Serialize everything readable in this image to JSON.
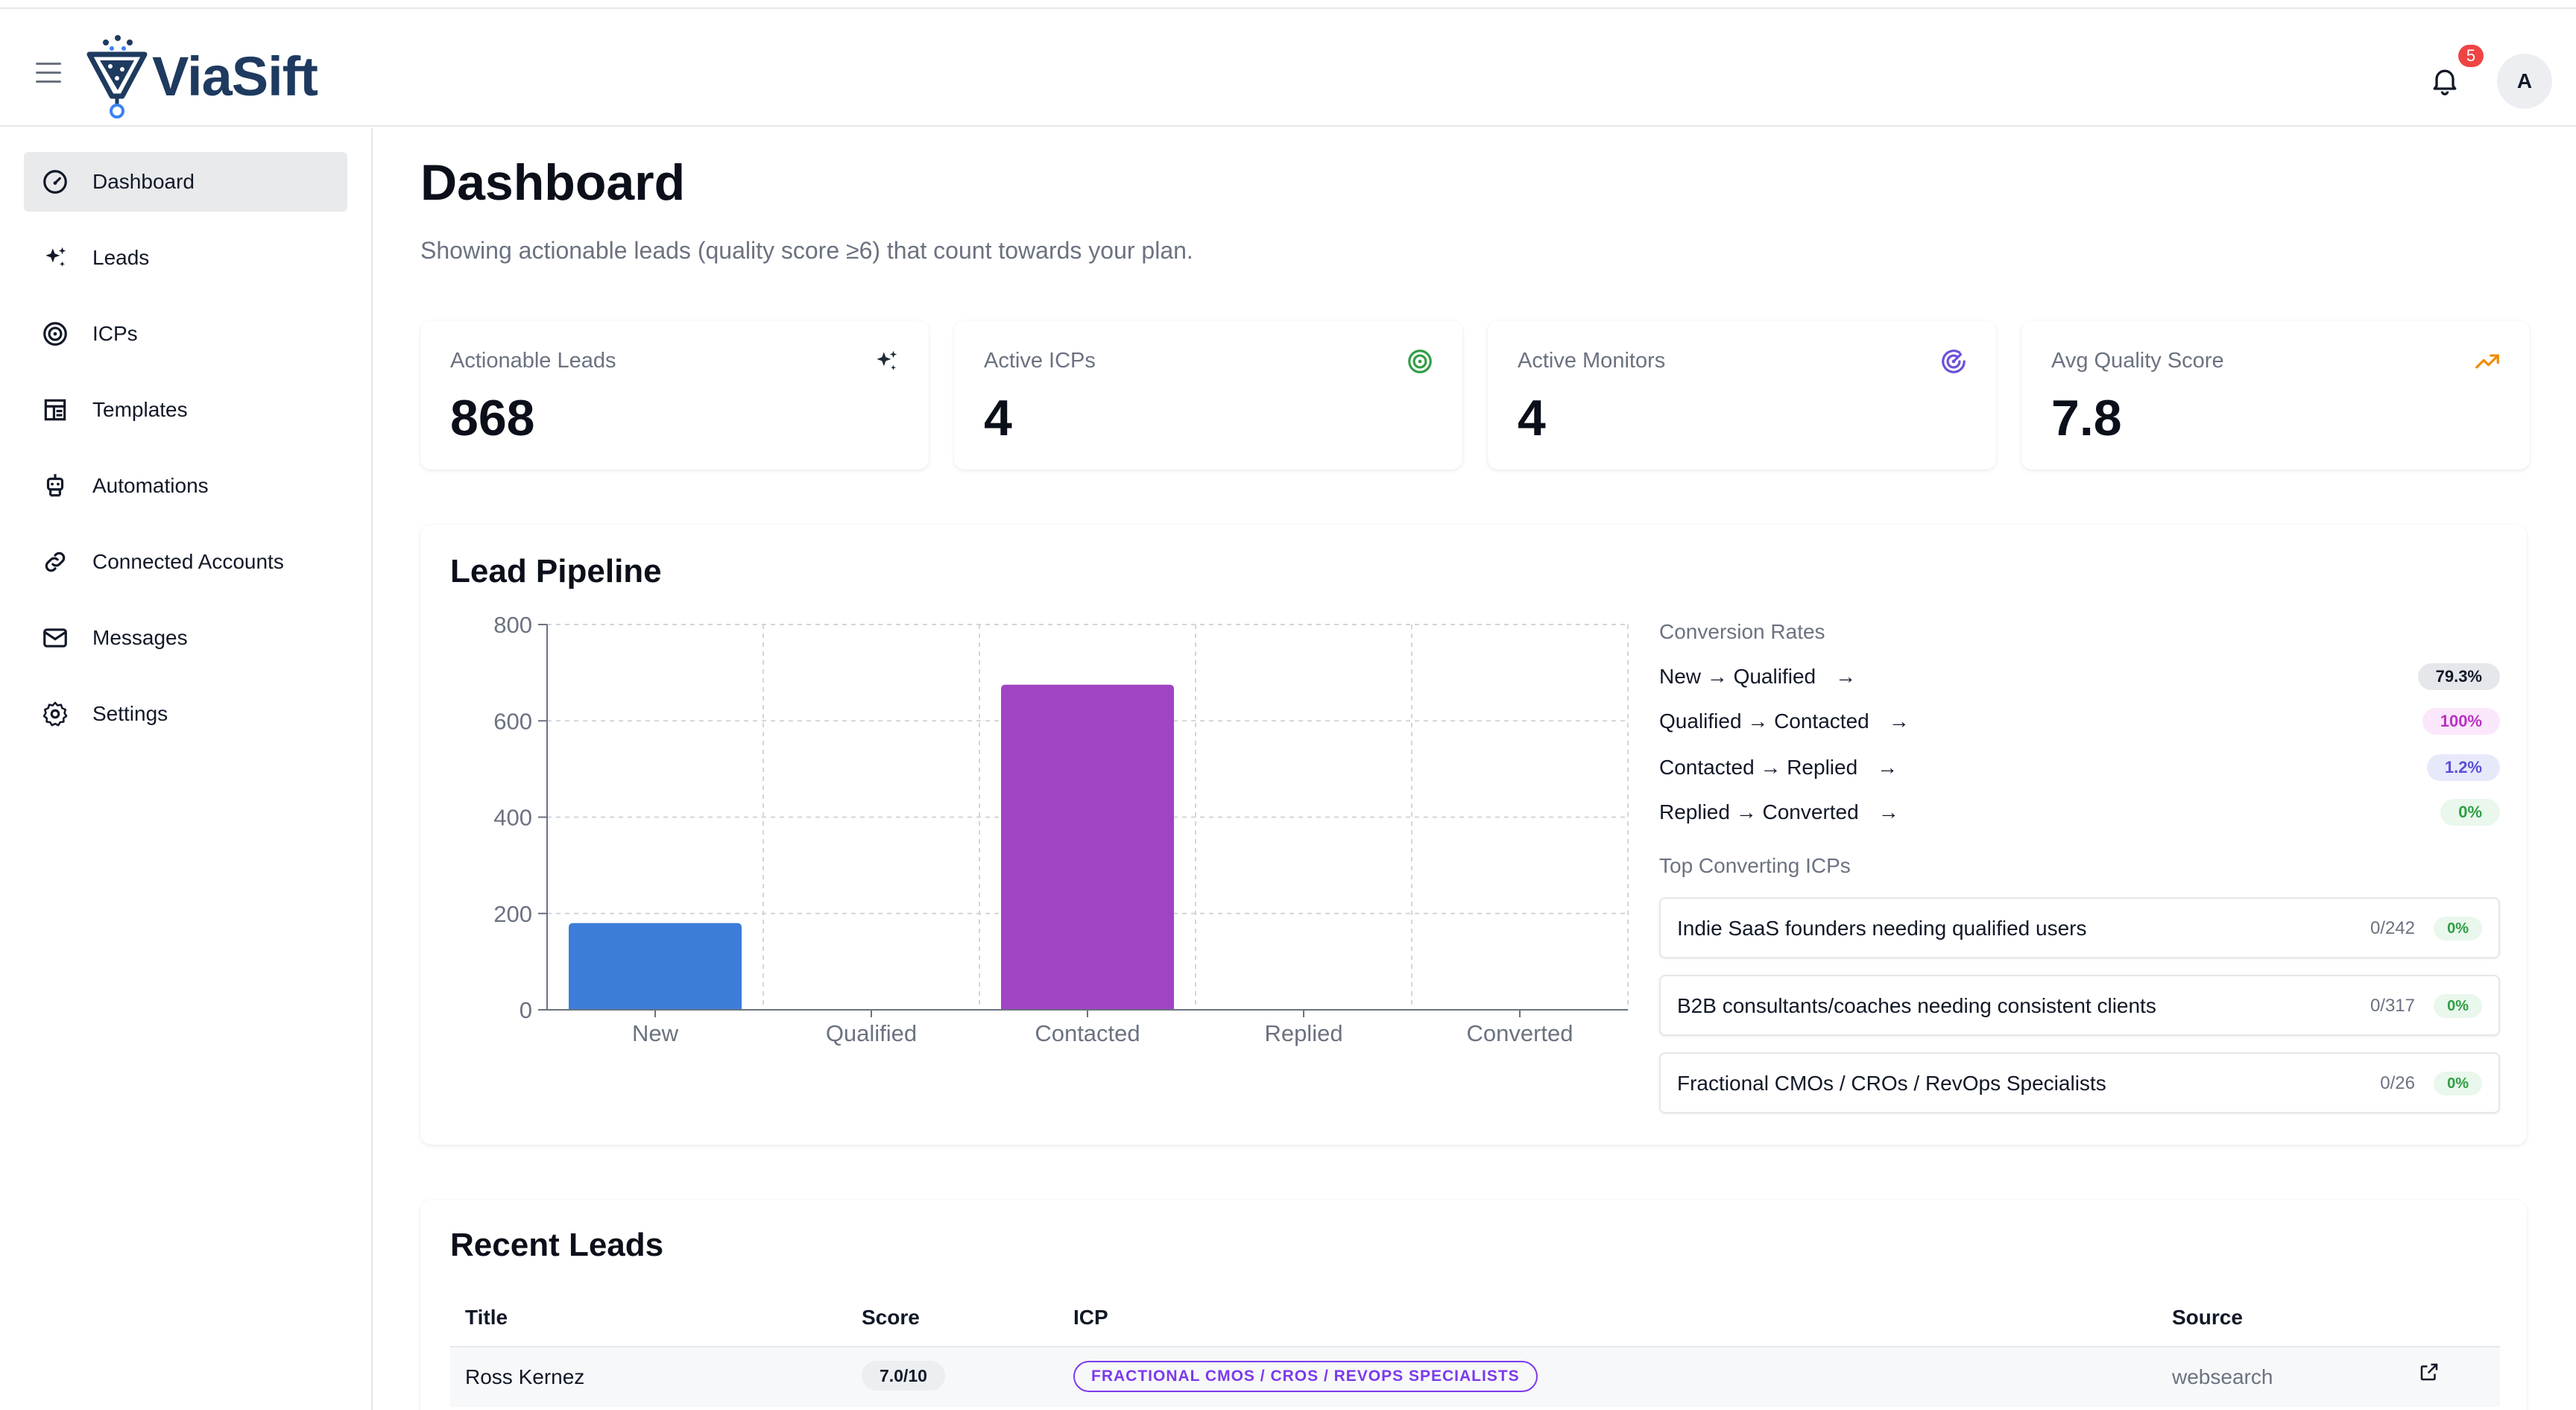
{
  "app": {
    "name": "ViaSift",
    "notification_count": "5",
    "avatar_initial": "A"
  },
  "sidebar": {
    "items": [
      {
        "label": "Dashboard",
        "icon": "gauge-icon",
        "active": true
      },
      {
        "label": "Leads",
        "icon": "sparkles-icon"
      },
      {
        "label": "ICPs",
        "icon": "target-icon"
      },
      {
        "label": "Templates",
        "icon": "template-icon"
      },
      {
        "label": "Automations",
        "icon": "robot-icon"
      },
      {
        "label": "Connected Accounts",
        "icon": "link-icon"
      },
      {
        "label": "Messages",
        "icon": "mail-icon"
      },
      {
        "label": "Settings",
        "icon": "gear-icon"
      }
    ]
  },
  "page": {
    "title": "Dashboard",
    "subtitle": "Showing actionable leads (quality score ≥6) that count towards your plan."
  },
  "stats": [
    {
      "label": "Actionable Leads",
      "value": "868",
      "icon": "sparkles-icon",
      "color": "#1f2937"
    },
    {
      "label": "Active ICPs",
      "value": "4",
      "icon": "target-icon",
      "color": "#2f9e44"
    },
    {
      "label": "Active Monitors",
      "value": "4",
      "icon": "radar-icon",
      "color": "#6d4fd8"
    },
    {
      "label": "Avg Quality Score",
      "value": "7.8",
      "icon": "trending-up-icon",
      "color": "#f08c00"
    }
  ],
  "pipeline": {
    "title": "Lead Pipeline",
    "conversion_title": "Conversion Rates",
    "rates": [
      {
        "label": "New → Qualified",
        "value": "79.3%",
        "bg": "#e5e7eb",
        "fg": "#111827"
      },
      {
        "label": "Qualified → Contacted",
        "value": "100%",
        "bg": "#fbe7fb",
        "fg": "#b832c4"
      },
      {
        "label": "Contacted → Replied",
        "value": "1.2%",
        "bg": "#e7e9fb",
        "fg": "#5b4fd8"
      },
      {
        "label": "Replied → Converted",
        "value": "0%",
        "bg": "#e9f7ec",
        "fg": "#2f9e44"
      }
    ],
    "top_icps_title": "Top Converting ICPs",
    "top_icps": [
      {
        "name": "Indie SaaS founders needing qualified users",
        "count": "0/242",
        "rate": "0%"
      },
      {
        "name": "B2B consultants/coaches needing consistent clients",
        "count": "0/317",
        "rate": "0%"
      },
      {
        "name": "Fractional CMOs / CROs / RevOps Specialists",
        "count": "0/26",
        "rate": "0%"
      }
    ]
  },
  "chart_data": {
    "type": "bar",
    "categories": [
      "New",
      "Qualified",
      "Contacted",
      "Replied",
      "Converted"
    ],
    "values": [
      180,
      0,
      675,
      0,
      0
    ],
    "colors": [
      "#3b7dd8",
      "#3b7dd8",
      "#a044c3",
      "#3b7dd8",
      "#3b7dd8"
    ],
    "yticks": [
      "0",
      "200",
      "400",
      "600",
      "800"
    ],
    "ylim": [
      0,
      800
    ],
    "grid": true,
    "title": "",
    "xlabel": "",
    "ylabel": ""
  },
  "recent": {
    "title": "Recent Leads",
    "columns": {
      "title": "Title",
      "score": "Score",
      "icp": "ICP",
      "source": "Source"
    },
    "rows": [
      {
        "title": "Ross Kernez",
        "score": "7.0/10",
        "icp": "FRACTIONAL CMOS / CROS / REVOPS SPECIALISTS",
        "source": "websearch"
      }
    ]
  }
}
